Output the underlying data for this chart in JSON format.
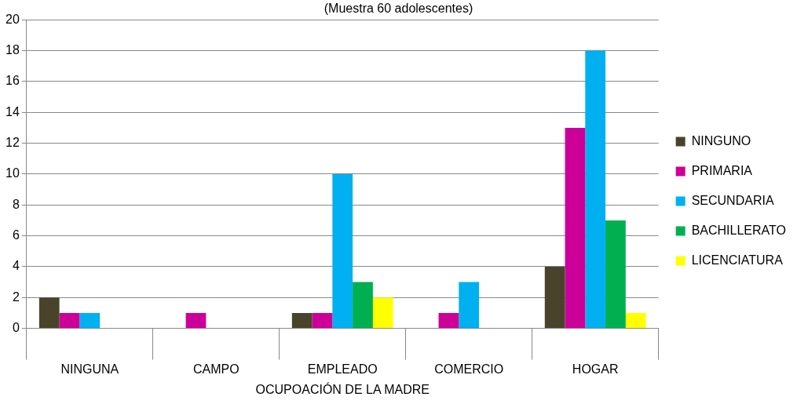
{
  "chart_data": {
    "type": "bar",
    "subtitle": "(Muestra 60 adolescentes)",
    "xlabel": "OCUPOACIÓN DE LA MADRE",
    "categories": [
      "NINGUNA",
      "CAMPO",
      "EMPLEADO",
      "COMERCIO",
      "HOGAR"
    ],
    "series": [
      {
        "name": "NINGUNO",
        "color": "#4a432c",
        "values": [
          2,
          0,
          1,
          0,
          4
        ]
      },
      {
        "name": "PRIMARIA",
        "color": "#cc0099",
        "values": [
          1,
          1,
          1,
          1,
          13
        ]
      },
      {
        "name": "SECUNDARIA",
        "color": "#00b0f0",
        "values": [
          1,
          0,
          10,
          3,
          18
        ]
      },
      {
        "name": "BACHILLERATO",
        "color": "#00b050",
        "values": [
          0,
          0,
          3,
          0,
          7
        ]
      },
      {
        "name": "LICENCIATURA",
        "color": "#ffff00",
        "values": [
          0,
          0,
          2,
          0,
          1
        ]
      }
    ],
    "ylim": [
      0,
      20
    ],
    "yticks": [
      0,
      2,
      4,
      6,
      8,
      10,
      12,
      14,
      16,
      18,
      20
    ],
    "grid": "y",
    "legend": "right"
  }
}
